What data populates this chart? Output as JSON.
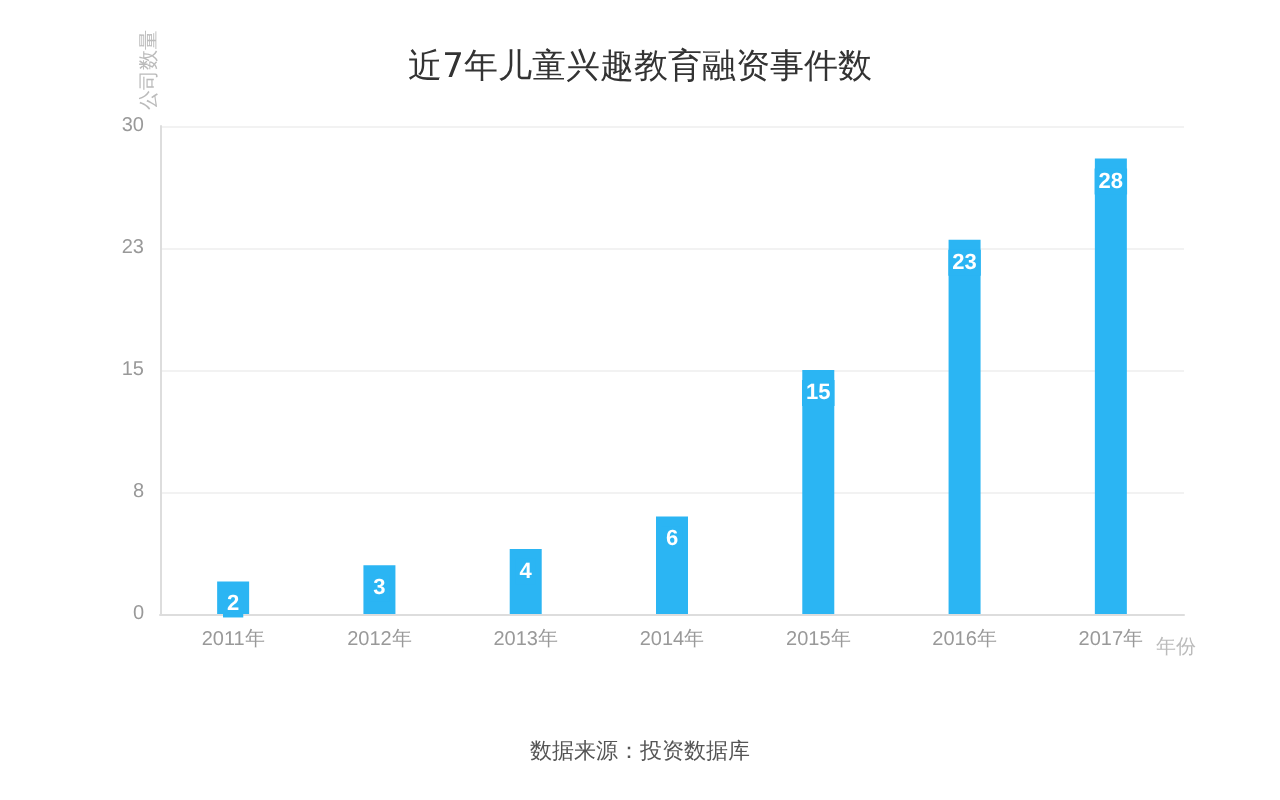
{
  "chart_data": {
    "type": "bar",
    "title": "近7年儿童兴趣教育融资事件数",
    "ylabel": "公司数量",
    "xlabel": "年份",
    "categories": [
      "2011年",
      "2012年",
      "2013年",
      "2014年",
      "2015年",
      "2016年",
      "2017年"
    ],
    "values": [
      2,
      3,
      4,
      6,
      15,
      23,
      28
    ],
    "color": "#2bb5f3",
    "data_labels": true,
    "ylim": [
      0,
      30
    ],
    "yticks": [
      0,
      {
        "value": 7.5,
        "label": "8"
      },
      15,
      {
        "value": 22.5,
        "label": "23"
      },
      30
    ],
    "grid": "y",
    "annotations": [
      "数据来源：投资数据库"
    ]
  }
}
